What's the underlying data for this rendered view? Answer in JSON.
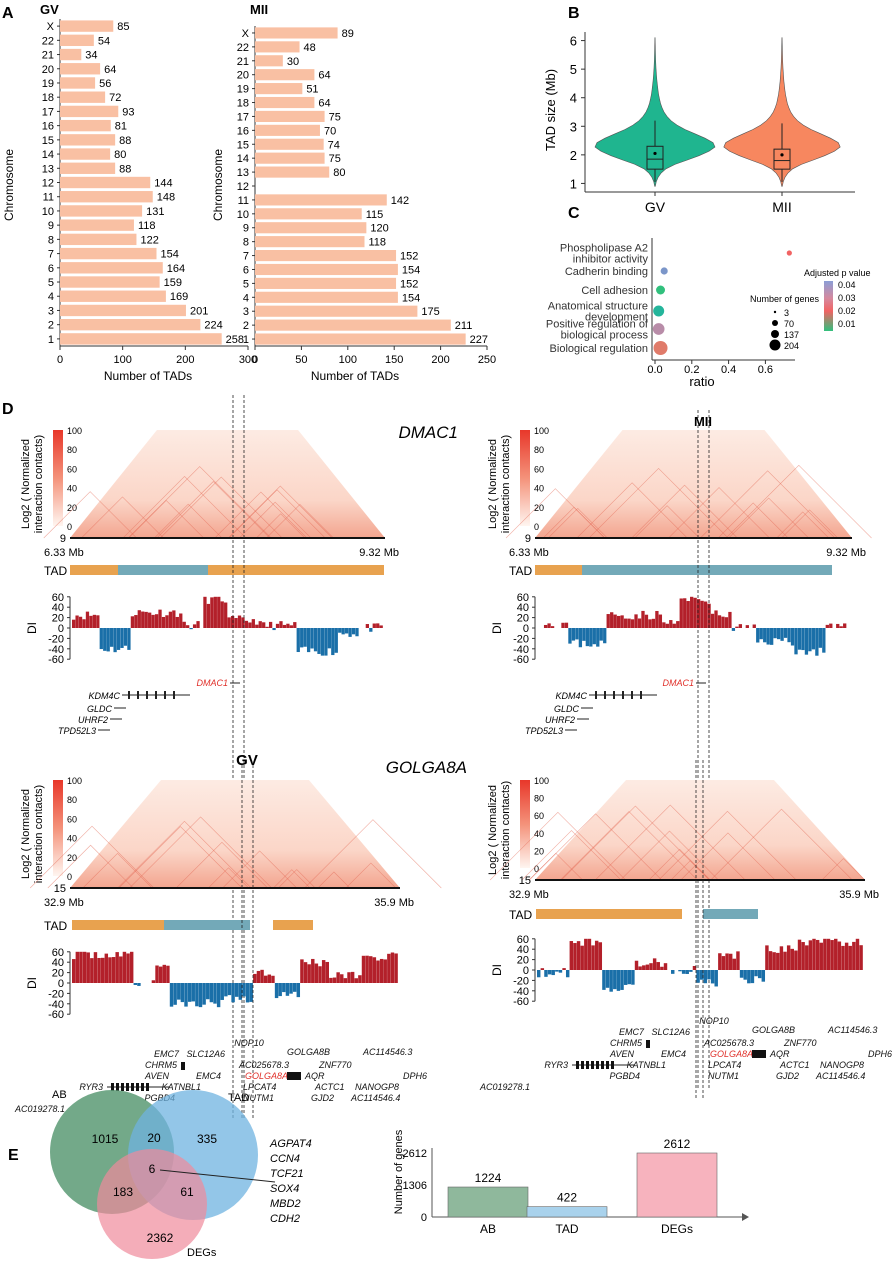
{
  "panelA": {
    "label": "A",
    "gv": {
      "title": "GV",
      "ylabel": "Chromosome",
      "xlabel": "Number of TADs",
      "xticks": [
        0,
        100,
        200,
        300
      ],
      "chart_data": {
        "type": "bar",
        "orientation": "horizontal",
        "categories": [
          "X",
          "22",
          "21",
          "20",
          "19",
          "18",
          "17",
          "16",
          "15",
          "14",
          "13",
          "12",
          "11",
          "10",
          "9",
          "8",
          "7",
          "6",
          "5",
          "4",
          "3",
          "2",
          "1"
        ],
        "values": [
          85,
          54,
          34,
          64,
          56,
          72,
          93,
          81,
          88,
          80,
          88,
          144,
          148,
          131,
          118,
          122,
          154,
          164,
          159,
          169,
          201,
          224,
          258
        ],
        "xlim": [
          0,
          300
        ],
        "color": "#f9c0a3"
      }
    },
    "mii": {
      "title": "MII",
      "ylabel": "Chromosome",
      "xlabel": "Number of TADs",
      "xticks": [
        0,
        50,
        100,
        150,
        200,
        250
      ],
      "chart_data": {
        "type": "bar",
        "orientation": "horizontal",
        "categories": [
          "X",
          "22",
          "21",
          "20",
          "19",
          "18",
          "17",
          "16",
          "15",
          "14",
          "13",
          "12",
          "11",
          "10",
          "9",
          "8",
          "7",
          "6",
          "5",
          "4",
          "3",
          "2",
          "1"
        ],
        "values": [
          89,
          48,
          30,
          64,
          51,
          64,
          75,
          70,
          74,
          75,
          80,
          null,
          142,
          115,
          120,
          118,
          152,
          154,
          152,
          154,
          175,
          211,
          227
        ],
        "xlim": [
          0,
          250
        ],
        "color": "#f9c0a3"
      }
    }
  },
  "panelB": {
    "label": "B",
    "ylabel": "TAD size (Mb)",
    "yticks": [
      1,
      2,
      3,
      4,
      5,
      6
    ],
    "chart_data": {
      "type": "violin",
      "categories": [
        "GV",
        "MII"
      ],
      "ylim": [
        0.7,
        6.3
      ],
      "medians": [
        1.85,
        1.8
      ],
      "q1": [
        1.5,
        1.5
      ],
      "q3": [
        2.3,
        2.2
      ],
      "means": [
        2.05,
        2.0
      ],
      "colors": [
        "#1fb58f",
        "#f7875f"
      ]
    }
  },
  "panelC": {
    "label": "C",
    "xlabel": "ratio",
    "xticks": [
      "0.0",
      "0.2",
      "0.4",
      "0.6"
    ],
    "terms": [
      "Phospholipase A2 inhibitor activity",
      "Cadherin binding",
      "Cell adhesion",
      "Anatomical structure development",
      "Positive regulation of biological process",
      "Biological regulation"
    ],
    "term_lines": [
      [
        "Phospholipase A2",
        "inhibitor activity"
      ],
      [
        "Cadherin binding"
      ],
      [
        "Cell adhesion"
      ],
      [
        "Anatomical structure",
        "development"
      ],
      [
        "Positive regulation of",
        "biological process"
      ],
      [
        "Biological regulation"
      ]
    ],
    "chart_data": {
      "type": "scatter",
      "x": [
        0.73,
        0.05,
        0.03,
        0.02,
        0.02,
        0.03
      ],
      "sizes": [
        3,
        20,
        50,
        100,
        120,
        204
      ],
      "padj": [
        0.02,
        0.04,
        0.01,
        0.015,
        0.035,
        0.03
      ]
    },
    "legend_padj_title": "Adjusted p value",
    "legend_padj_ticks": [
      "0.04",
      "0.03",
      "0.02",
      "0.01"
    ],
    "legend_size_title": "Number of genes",
    "legend_size_values": [
      "3",
      "70",
      "137",
      "204"
    ]
  },
  "panelD": {
    "label": "D",
    "heat_ylabel1": "Log2 ( Normalized",
    "heat_ylabel2": "interaction contacts)",
    "scale_ticks": [
      "100",
      "80",
      "60",
      "40",
      "20",
      "0"
    ],
    "tad_label": "TAD",
    "di_label": "DI",
    "di_ticks": [
      "60",
      "40",
      "20",
      "0",
      "-20",
      "-40",
      "-60"
    ],
    "top_left": {
      "gene_title": "DMAC1",
      "start": "6.33 Mb",
      "end": "9.32 Mb",
      "axis_num": "9",
      "genes": [
        "KDM4C",
        "GLDC",
        "UHRF2",
        "TPD52L3",
        "DMAC1"
      ]
    },
    "top_right": {
      "stage": "MII",
      "start": "6.33 Mb",
      "end": "9.32 Mb",
      "axis_num": "9",
      "genes": [
        "KDM4C",
        "GLDC",
        "UHRF2",
        "TPD52L3",
        "DMAC1"
      ]
    },
    "bottom_left": {
      "stage": "GV",
      "gene_title": "GOLGA8A",
      "start": "32.9 Mb",
      "end": "35.9 Mb",
      "axis_num": "15",
      "genes": [
        "NOP10",
        "EMC7",
        "SLC12A6",
        "GOLGA8B",
        "AC114546.3",
        "CHRM5",
        "AC025678.3",
        "ZNF770",
        "AVEN",
        "EMC4",
        "GOLGA8A",
        "AQR",
        "DPH6",
        "RYR3",
        "KATNBL1",
        "LPCAT4",
        "ACTC1",
        "NANOGP8",
        "PGBD4",
        "NUTM1",
        "GJD2",
        "AC114546.4",
        "AC019278.1"
      ]
    },
    "bottom_right": {
      "start": "32.9 Mb",
      "end": "35.9 Mb",
      "axis_num": "15",
      "genes": [
        "NOP10",
        "EMC7",
        "SLC12A6",
        "GOLGA8B",
        "AC114546.3",
        "CHRM5",
        "AC025678.3",
        "ZNF770",
        "AVEN",
        "EMC4",
        "GOLGA8A",
        "AQR",
        "DPH6",
        "RYR3",
        "KATNBL1",
        "LPCAT4",
        "ACTC1",
        "NANOGP8",
        "PGBD4",
        "NUTM1",
        "GJD2",
        "AC114546.4",
        "AC019278.1"
      ]
    }
  },
  "panelE": {
    "label": "E",
    "venn": {
      "sets": [
        "AB",
        "TAD",
        "DEGs"
      ],
      "counts": {
        "ab_only": "1015",
        "ab_tad": "20",
        "tad_only": "335",
        "all": "6",
        "ab_deg": "183",
        "tad_deg": "61",
        "deg_only": "2362"
      },
      "colors": [
        "#5b9a74",
        "#6fb3e0",
        "#f08a9b"
      ]
    },
    "gene_list": [
      "AGPAT4",
      "CCN4",
      "TCF21",
      "SOX4",
      "MBD2",
      "CDH2"
    ],
    "bar": {
      "ylabel": "Number of genes",
      "yticks": [
        "2612",
        "1306",
        "0"
      ],
      "chart_data": {
        "type": "bar",
        "categories": [
          "AB",
          "TAD",
          "DEGs"
        ],
        "values": [
          1224,
          422,
          2612
        ],
        "ylim": [
          0,
          2612
        ],
        "colors": [
          "#8fb89c",
          "#a9d2ec",
          "#f7b3be"
        ],
        "value_labels": [
          "1224",
          "422",
          "2612"
        ]
      }
    }
  },
  "colors": {
    "tad_orange": "#e8a24f",
    "tad_blue": "#73a9b8",
    "di_red": "#b3202a",
    "di_blue": "#1a6fa8"
  }
}
